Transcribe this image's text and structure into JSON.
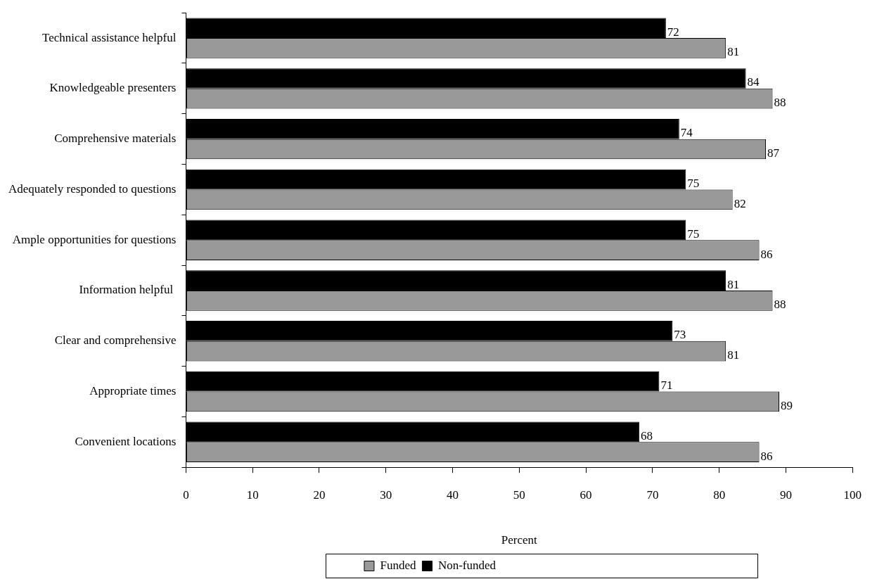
{
  "chart_data": {
    "type": "bar",
    "orientation": "horizontal",
    "xlabel": "Percent",
    "categories": [
      "Technical assistance helpful",
      "Knowledgeable presenters",
      "Comprehensive materials",
      "Adequately responded to questions",
      "Ample opportunities for questions",
      "Information helpful ",
      "Clear and comprehensive",
      "Appropriate times",
      "Convenient locations"
    ],
    "series": [
      {
        "name": "Non-funded",
        "color": "#000000",
        "values": [
          72,
          84,
          74,
          75,
          75,
          81,
          73,
          71,
          68
        ]
      },
      {
        "name": "Funded",
        "color": "#999999",
        "values": [
          81,
          88,
          87,
          82,
          86,
          88,
          81,
          89,
          86
        ]
      }
    ],
    "xlim": [
      0,
      100
    ],
    "xticks": [
      0,
      10,
      20,
      30,
      40,
      50,
      60,
      70,
      80,
      90,
      100
    ],
    "data_labels": true,
    "grid": false,
    "legend": "bottom"
  }
}
